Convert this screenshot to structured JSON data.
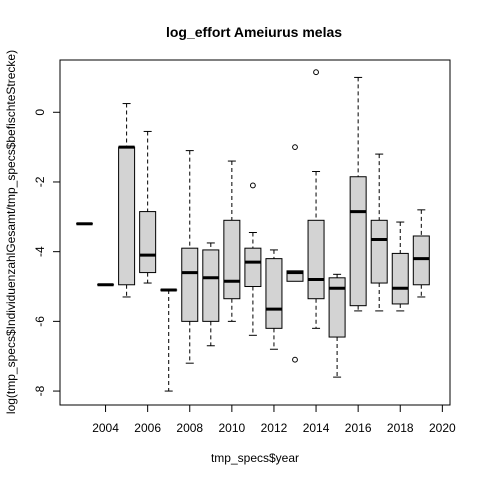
{
  "chart_data": {
    "type": "boxplot",
    "title": "log_effort Ameiurus melas",
    "xlabel": "tmp_specs$year",
    "ylabel": "log(tmp_specs$IndividuenzahlGesamt/tmp_specs$befischteStrecke)",
    "x_tick_labels": [
      "2004",
      "2006",
      "2008",
      "2010",
      "2012",
      "2014",
      "2016",
      "2018",
      "2020"
    ],
    "y_ticks": [
      0,
      -2,
      -4,
      -6,
      -8
    ],
    "ylim": [
      -8.4,
      1.5
    ],
    "categories": [
      "2003",
      "2004",
      "2005",
      "2006",
      "2007",
      "2008",
      "2009",
      "2010",
      "2011",
      "2012",
      "2013",
      "2014",
      "2015",
      "2016",
      "2017",
      "2018",
      "2019",
      "2020"
    ],
    "boxes": [
      {
        "year": "2003",
        "min": -3.2,
        "q1": -3.2,
        "median": -3.2,
        "q3": -3.2,
        "max": -3.2,
        "outliers": []
      },
      {
        "year": "2004",
        "min": -4.95,
        "q1": -4.95,
        "median": -4.95,
        "q3": -4.95,
        "max": -4.95,
        "outliers": []
      },
      {
        "year": "2005",
        "min": -5.3,
        "q1": -4.95,
        "median": -1.0,
        "q3": -1.0,
        "max": 0.25,
        "outliers": []
      },
      {
        "year": "2006",
        "min": -4.9,
        "q1": -4.6,
        "median": -4.1,
        "q3": -2.85,
        "max": -0.55,
        "outliers": []
      },
      {
        "year": "2007",
        "min": -8.0,
        "q1": -5.1,
        "median": -5.1,
        "q3": -5.1,
        "max": -5.1,
        "outliers": []
      },
      {
        "year": "2008",
        "min": -7.2,
        "q1": -6.0,
        "median": -4.6,
        "q3": -3.9,
        "max": -1.1,
        "outliers": []
      },
      {
        "year": "2009",
        "min": -6.7,
        "q1": -6.0,
        "median": -4.75,
        "q3": -3.95,
        "max": -3.75,
        "outliers": []
      },
      {
        "year": "2010",
        "min": -6.0,
        "q1": -5.35,
        "median": -4.85,
        "q3": -3.1,
        "max": -1.4,
        "outliers": []
      },
      {
        "year": "2011",
        "min": -6.4,
        "q1": -5.0,
        "median": -4.3,
        "q3": -3.9,
        "max": -3.45,
        "outliers": [
          -2.1
        ]
      },
      {
        "year": "2012",
        "min": -6.8,
        "q1": -6.2,
        "median": -5.65,
        "q3": -4.2,
        "max": -3.95,
        "outliers": []
      },
      {
        "year": "2013",
        "min": -4.85,
        "q1": -4.85,
        "median": -4.6,
        "q3": -4.55,
        "max": -4.55,
        "outliers": [
          -1.0,
          -7.1
        ]
      },
      {
        "year": "2014",
        "min": -6.2,
        "q1": -5.35,
        "median": -4.8,
        "q3": -3.1,
        "max": -1.7,
        "outliers": [
          1.15
        ]
      },
      {
        "year": "2015",
        "min": -7.6,
        "q1": -6.45,
        "median": -5.05,
        "q3": -4.75,
        "max": -4.65,
        "outliers": []
      },
      {
        "year": "2016",
        "min": -5.7,
        "q1": -5.55,
        "median": -2.85,
        "q3": -1.85,
        "max": 1.0,
        "outliers": []
      },
      {
        "year": "2017",
        "min": -5.7,
        "q1": -4.9,
        "median": -3.65,
        "q3": -3.1,
        "max": -1.2,
        "outliers": []
      },
      {
        "year": "2018",
        "min": -5.7,
        "q1": -5.5,
        "median": -5.05,
        "q3": -4.05,
        "max": -3.15,
        "outliers": []
      },
      {
        "year": "2019",
        "min": -5.3,
        "q1": -4.95,
        "median": -4.2,
        "q3": -3.55,
        "max": -2.8,
        "outliers": []
      }
    ],
    "colors": {
      "box_fill": "#d3d3d3",
      "stroke": "#000000"
    }
  }
}
